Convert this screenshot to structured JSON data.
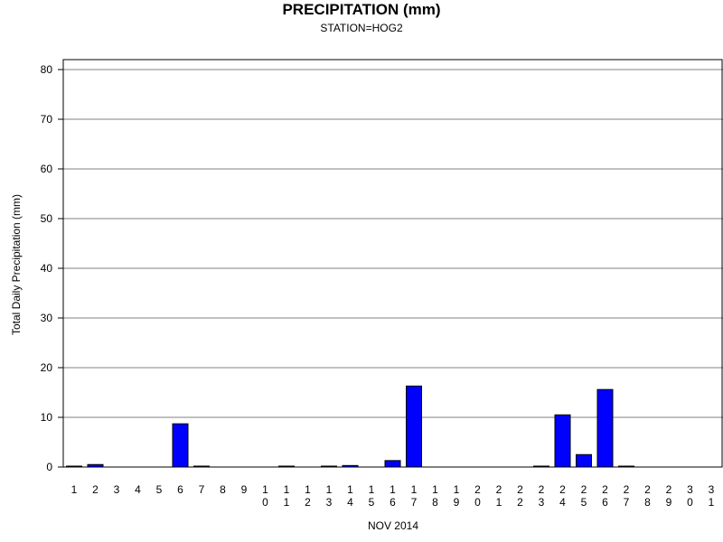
{
  "chart_data": {
    "type": "bar",
    "title": "PRECIPITATION (mm)",
    "subtitle": "STATION=HOG2",
    "xlabel": "NOV 2014",
    "ylabel": "Total Daily Precipitation (mm)",
    "ylim": [
      0,
      80
    ],
    "yticks": [
      0,
      10,
      20,
      30,
      40,
      50,
      60,
      70,
      80
    ],
    "grid": true,
    "categories": [
      "1",
      "2",
      "3",
      "4",
      "5",
      "6",
      "7",
      "8",
      "9",
      "10",
      "11",
      "12",
      "13",
      "14",
      "15",
      "16",
      "17",
      "18",
      "19",
      "20",
      "21",
      "22",
      "23",
      "24",
      "25",
      "26",
      "27",
      "28",
      "29",
      "30",
      "31"
    ],
    "values": [
      0.1,
      0.5,
      0,
      0,
      0,
      8.7,
      0.1,
      0,
      0,
      0,
      0.1,
      0,
      0.1,
      0.3,
      0,
      1.3,
      16.3,
      0,
      0,
      0,
      0,
      0,
      0.1,
      10.5,
      2.5,
      15.6,
      0.1,
      0,
      0,
      0,
      0
    ],
    "bar_color": "#0000ff"
  }
}
